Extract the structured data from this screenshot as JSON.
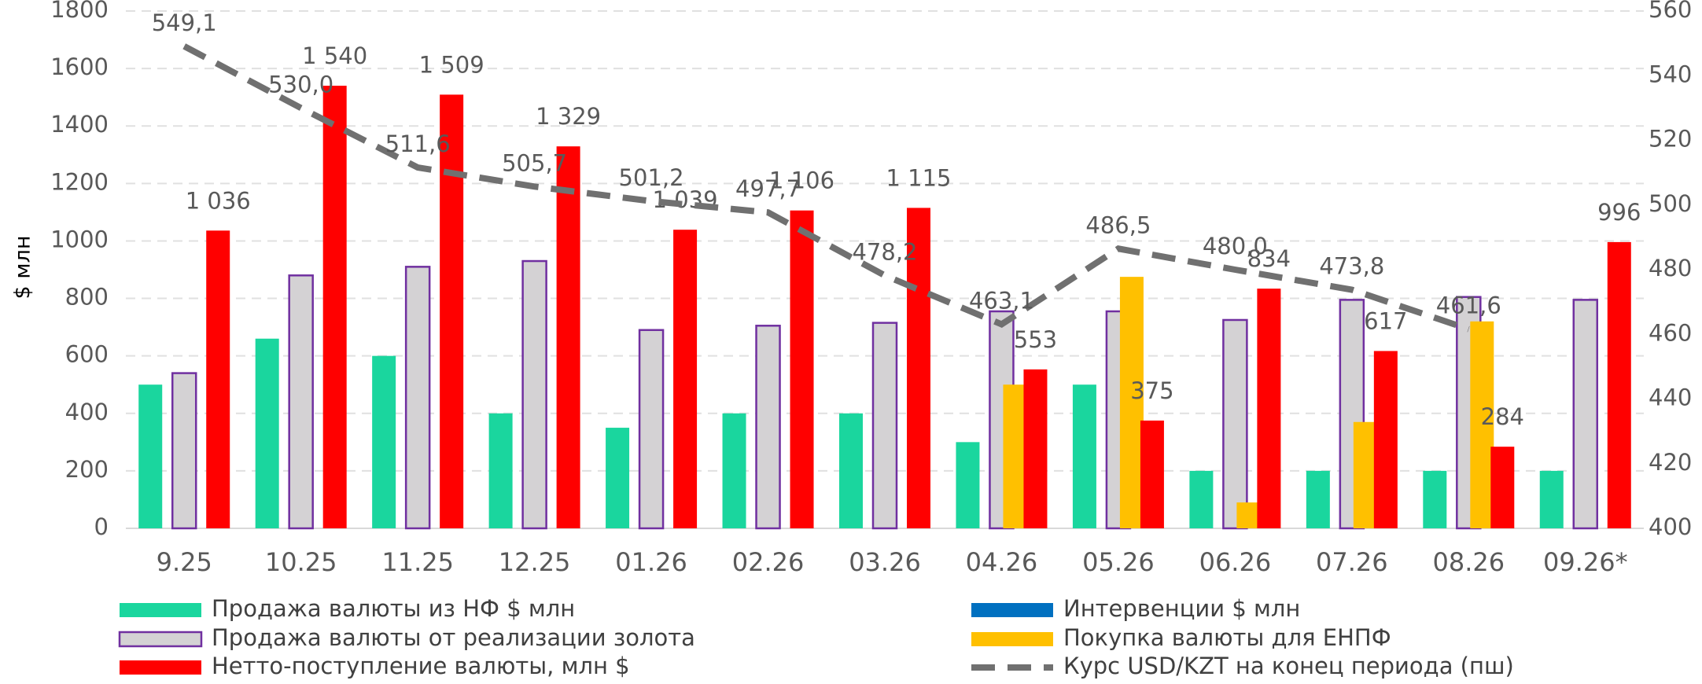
{
  "chart_data": {
    "type": "bar",
    "categories": [
      "9.25",
      "10.25",
      "11.25",
      "12.25",
      "01.26",
      "02.26",
      "03.26",
      "04.26",
      "05.26",
      "06.26",
      "07.26",
      "08.26",
      "09.26*"
    ],
    "y_label": "$ млн",
    "ylim": [
      0,
      1800
    ],
    "yticks": [
      0,
      200,
      400,
      600,
      800,
      1000,
      1200,
      1400,
      1600,
      1800
    ],
    "y2lim": [
      400,
      560
    ],
    "y2ticks": [
      400,
      420,
      440,
      460,
      480,
      500,
      520,
      540,
      560
    ],
    "grid": true,
    "series": [
      {
        "name": "Продажа валюты из НФ $ млн",
        "type": "bar",
        "color": "#1ad69e",
        "values": [
          500,
          660,
          600,
          400,
          350,
          400,
          400,
          300,
          500,
          200,
          200,
          200,
          200
        ]
      },
      {
        "name": "Продажа валюты от реализации золота",
        "type": "bar",
        "color": "#d4d2d4",
        "border": "#7030a0",
        "values": [
          540,
          880,
          910,
          930,
          690,
          705,
          715,
          755,
          755,
          725,
          795,
          805,
          795
        ]
      },
      {
        "name": "Интервенции $ млн",
        "type": "bar",
        "color": "#0070c0",
        "values": [
          0,
          0,
          0,
          0,
          0,
          0,
          0,
          0,
          0,
          0,
          0,
          0,
          0
        ]
      },
      {
        "name": "Покупка валюты для ЕНПФ",
        "type": "bar",
        "color": "#ffc000",
        "values": [
          0,
          0,
          0,
          0,
          0,
          0,
          0,
          500,
          875,
          90,
          370,
          720,
          0
        ]
      },
      {
        "name": "Нетто-поступление валюты, млн $",
        "type": "bar",
        "color": "#ff0000",
        "values": [
          1036,
          1540,
          1509,
          1329,
          1039,
          1106,
          1115,
          553,
          375,
          834,
          617,
          284,
          996
        ],
        "value_labels": [
          "1 036",
          "1 540",
          "1 509",
          "1 329",
          "1 039",
          "1 106",
          "1 115",
          "553",
          "375",
          "834",
          "617",
          "284",
          "996"
        ]
      },
      {
        "name": "Курс USD/KZT на конец периода (пш)",
        "type": "line",
        "axis": "y2",
        "color": "#707070",
        "dashed": true,
        "values": [
          549.1,
          530.0,
          511.6,
          505.7,
          501.2,
          497.7,
          478.2,
          463.1,
          486.5,
          480.0,
          473.8,
          461.6,
          null
        ],
        "value_labels": [
          "549,1",
          "530,0",
          "511,6",
          "505,7",
          "501,2",
          "497,7",
          "478,2",
          "463,1",
          "486,5",
          "480,0",
          "473,8",
          "461,6",
          null
        ]
      }
    ]
  }
}
